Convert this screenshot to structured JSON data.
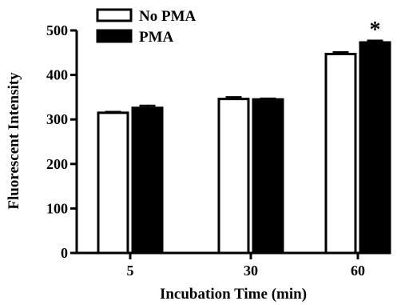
{
  "chart_data": {
    "type": "bar",
    "title": "",
    "xlabel": "Incubation Time (min)",
    "ylabel": "Fluorescent Intensity",
    "categories": [
      "5",
      "30",
      "60"
    ],
    "ylim": [
      0,
      500
    ],
    "yticks": [
      0,
      100,
      200,
      300,
      400,
      500
    ],
    "legend_position": "top-left",
    "series": [
      {
        "name": "No PMA",
        "fill": "#ffffff",
        "values": [
          315,
          346,
          447
        ],
        "errors": [
          2,
          4,
          4
        ]
      },
      {
        "name": "PMA",
        "fill": "#000000",
        "values": [
          326,
          345,
          473
        ],
        "errors": [
          5,
          2,
          4
        ]
      }
    ],
    "annotations": [
      {
        "text": "*",
        "category": "60",
        "series": "PMA"
      }
    ]
  }
}
